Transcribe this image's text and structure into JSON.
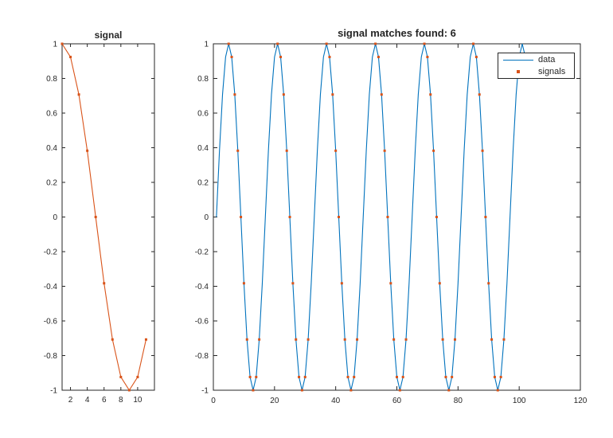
{
  "colors": {
    "background": "#FFFFFF",
    "data_line": "#0072BD",
    "signal_color": "#D95319",
    "axis": "#262626",
    "text": "#262626"
  },
  "chart_data": [
    {
      "type": "line",
      "title": "signal",
      "xlim": [
        1,
        12
      ],
      "ylim": [
        -1,
        1
      ],
      "xticks": [
        2,
        4,
        6,
        8,
        10
      ],
      "yticks": [
        -1,
        -0.8,
        -0.6,
        -0.4,
        -0.2,
        0,
        0.2,
        0.4,
        0.6,
        0.8,
        1
      ],
      "grid": false,
      "series": [
        {
          "name": "signal",
          "style": "line-markers",
          "color": "#D95319",
          "marker": "square",
          "x_start": 1,
          "y": [
            1,
            0.9239,
            0.7071,
            0.3827,
            0,
            -0.3827,
            -0.7071,
            -0.9239,
            -1,
            -0.9239,
            -0.7071
          ]
        }
      ]
    },
    {
      "type": "line",
      "title": "signal matches found: 6",
      "matches_found": 6,
      "xlim": [
        0,
        120
      ],
      "ylim": [
        -1,
        1
      ],
      "xticks": [
        0,
        20,
        40,
        60,
        80,
        100,
        120
      ],
      "yticks": [
        -1,
        -0.8,
        -0.6,
        -0.4,
        -0.2,
        0,
        0.2,
        0.4,
        0.6,
        0.8,
        1
      ],
      "grid": false,
      "legend": {
        "position": "top-right",
        "entries": [
          "data",
          "signals"
        ]
      },
      "series": [
        {
          "name": "data",
          "style": "line",
          "color": "#0072BD",
          "x_start": 1,
          "y": [
            0,
            0.3827,
            0.7071,
            0.9239,
            1,
            0.9239,
            0.7071,
            0.3827,
            0,
            -0.3827,
            -0.7071,
            -0.9239,
            -1,
            -0.9239,
            -0.7071,
            -0.3827,
            0,
            0.3827,
            0.7071,
            0.9239,
            1,
            0.9239,
            0.7071,
            0.3827,
            0,
            -0.3827,
            -0.7071,
            -0.9239,
            -1,
            -0.9239,
            -0.7071,
            -0.3827,
            0,
            0.3827,
            0.7071,
            0.9239,
            1,
            0.9239,
            0.7071,
            0.3827,
            0,
            -0.3827,
            -0.7071,
            -0.9239,
            -1,
            -0.9239,
            -0.7071,
            -0.3827,
            0,
            0.3827,
            0.7071,
            0.9239,
            1,
            0.9239,
            0.7071,
            0.3827,
            0,
            -0.3827,
            -0.7071,
            -0.9239,
            -1,
            -0.9239,
            -0.7071,
            -0.3827,
            0,
            0.3827,
            0.7071,
            0.9239,
            1,
            0.9239,
            0.7071,
            0.3827,
            0,
            -0.3827,
            -0.7071,
            -0.9239,
            -1,
            -0.9239,
            -0.7071,
            -0.3827,
            0,
            0.3827,
            0.7071,
            0.9239,
            1,
            0.9239,
            0.7071,
            0.3827,
            0,
            -0.3827,
            -0.7071,
            -0.9239,
            -1,
            -0.9239,
            -0.7071,
            -0.3827,
            0,
            0.3827,
            0.7071,
            0.9239,
            1,
            0.9239
          ]
        },
        {
          "name": "signals",
          "style": "markers",
          "color": "#D95319",
          "marker": "square",
          "match_starts": [
            5,
            21,
            37,
            53,
            69,
            85
          ],
          "template_y": [
            1,
            0.9239,
            0.7071,
            0.3827,
            0,
            -0.3827,
            -0.7071,
            -0.9239,
            -1,
            -0.9239,
            -0.7071
          ]
        }
      ]
    }
  ]
}
